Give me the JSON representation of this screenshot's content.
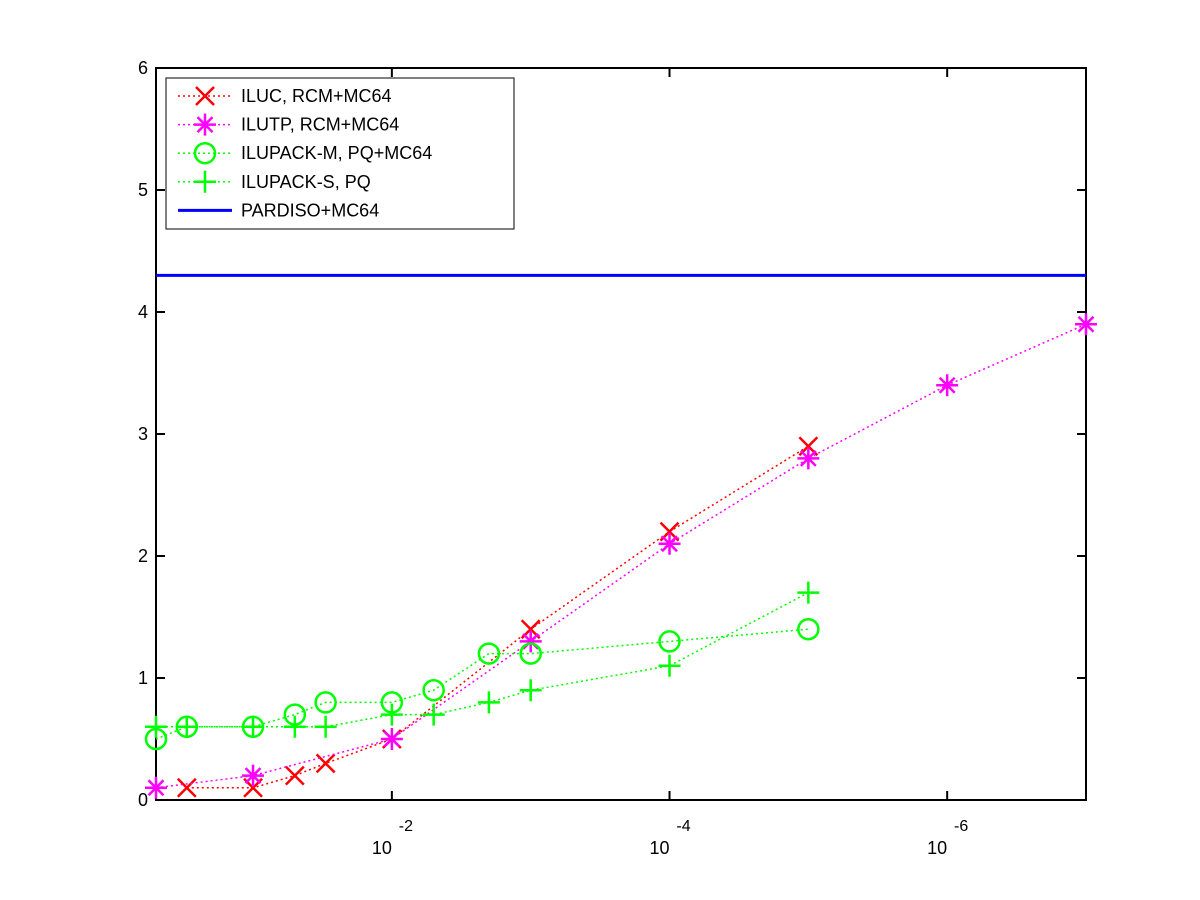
{
  "chart_data": {
    "type": "line",
    "title": "",
    "xlabel": "",
    "ylabel": "",
    "x_scale": "log",
    "x_reversed": true,
    "xlim": [
      0.5,
      1e-07
    ],
    "ylim": [
      0,
      6
    ],
    "yticks": [
      0,
      1,
      2,
      3,
      4,
      5,
      6
    ],
    "xticks": [
      {
        "value": 0.01,
        "base": "10",
        "exponent": "-2"
      },
      {
        "value": 0.0001,
        "base": "10",
        "exponent": "-4"
      },
      {
        "value": 1e-06,
        "base": "10",
        "exponent": "-6"
      }
    ],
    "grid": false,
    "legend_position": "top-left",
    "series": [
      {
        "name": "ILUC, RCM+MC64",
        "color": "#ff0000",
        "marker": "x",
        "line_style": "dotted",
        "x": [
          0.3,
          0.1,
          0.05,
          0.03,
          0.01,
          0.001,
          0.0001,
          1e-05
        ],
        "y": [
          0.1,
          0.1,
          0.2,
          0.3,
          0.5,
          1.4,
          2.2,
          2.9
        ]
      },
      {
        "name": "ILUTP, RCM+MC64",
        "color": "#ff00ff",
        "marker": "asterisk",
        "line_style": "dotted",
        "x": [
          0.5,
          0.1,
          0.01,
          0.001,
          0.0001,
          1e-05,
          1e-06,
          1e-07
        ],
        "y": [
          0.1,
          0.2,
          0.5,
          1.3,
          2.1,
          2.8,
          3.4,
          3.9
        ]
      },
      {
        "name": "ILUPACK-M, PQ+MC64",
        "color": "#00ff00",
        "marker": "circle",
        "line_style": "dotted",
        "x": [
          0.5,
          0.3,
          0.1,
          0.05,
          0.03,
          0.01,
          0.005,
          0.002,
          0.001,
          0.0001,
          1e-05
        ],
        "y": [
          0.5,
          0.6,
          0.6,
          0.7,
          0.8,
          0.8,
          0.9,
          1.2,
          1.2,
          1.3,
          1.4
        ]
      },
      {
        "name": "ILUPACK-S, PQ",
        "color": "#00ff00",
        "marker": "plus",
        "line_style": "dotted",
        "x": [
          0.5,
          0.3,
          0.1,
          0.05,
          0.03,
          0.01,
          0.005,
          0.002,
          0.001,
          0.0001,
          1e-05
        ],
        "y": [
          0.6,
          0.6,
          0.6,
          0.6,
          0.6,
          0.7,
          0.7,
          0.8,
          0.9,
          1.1,
          1.7
        ]
      },
      {
        "name": "PARDISO+MC64",
        "color": "#0000ff",
        "marker": "none",
        "line_style": "solid",
        "x": [
          0.5,
          1e-07
        ],
        "y": [
          4.3,
          4.3
        ]
      }
    ]
  }
}
